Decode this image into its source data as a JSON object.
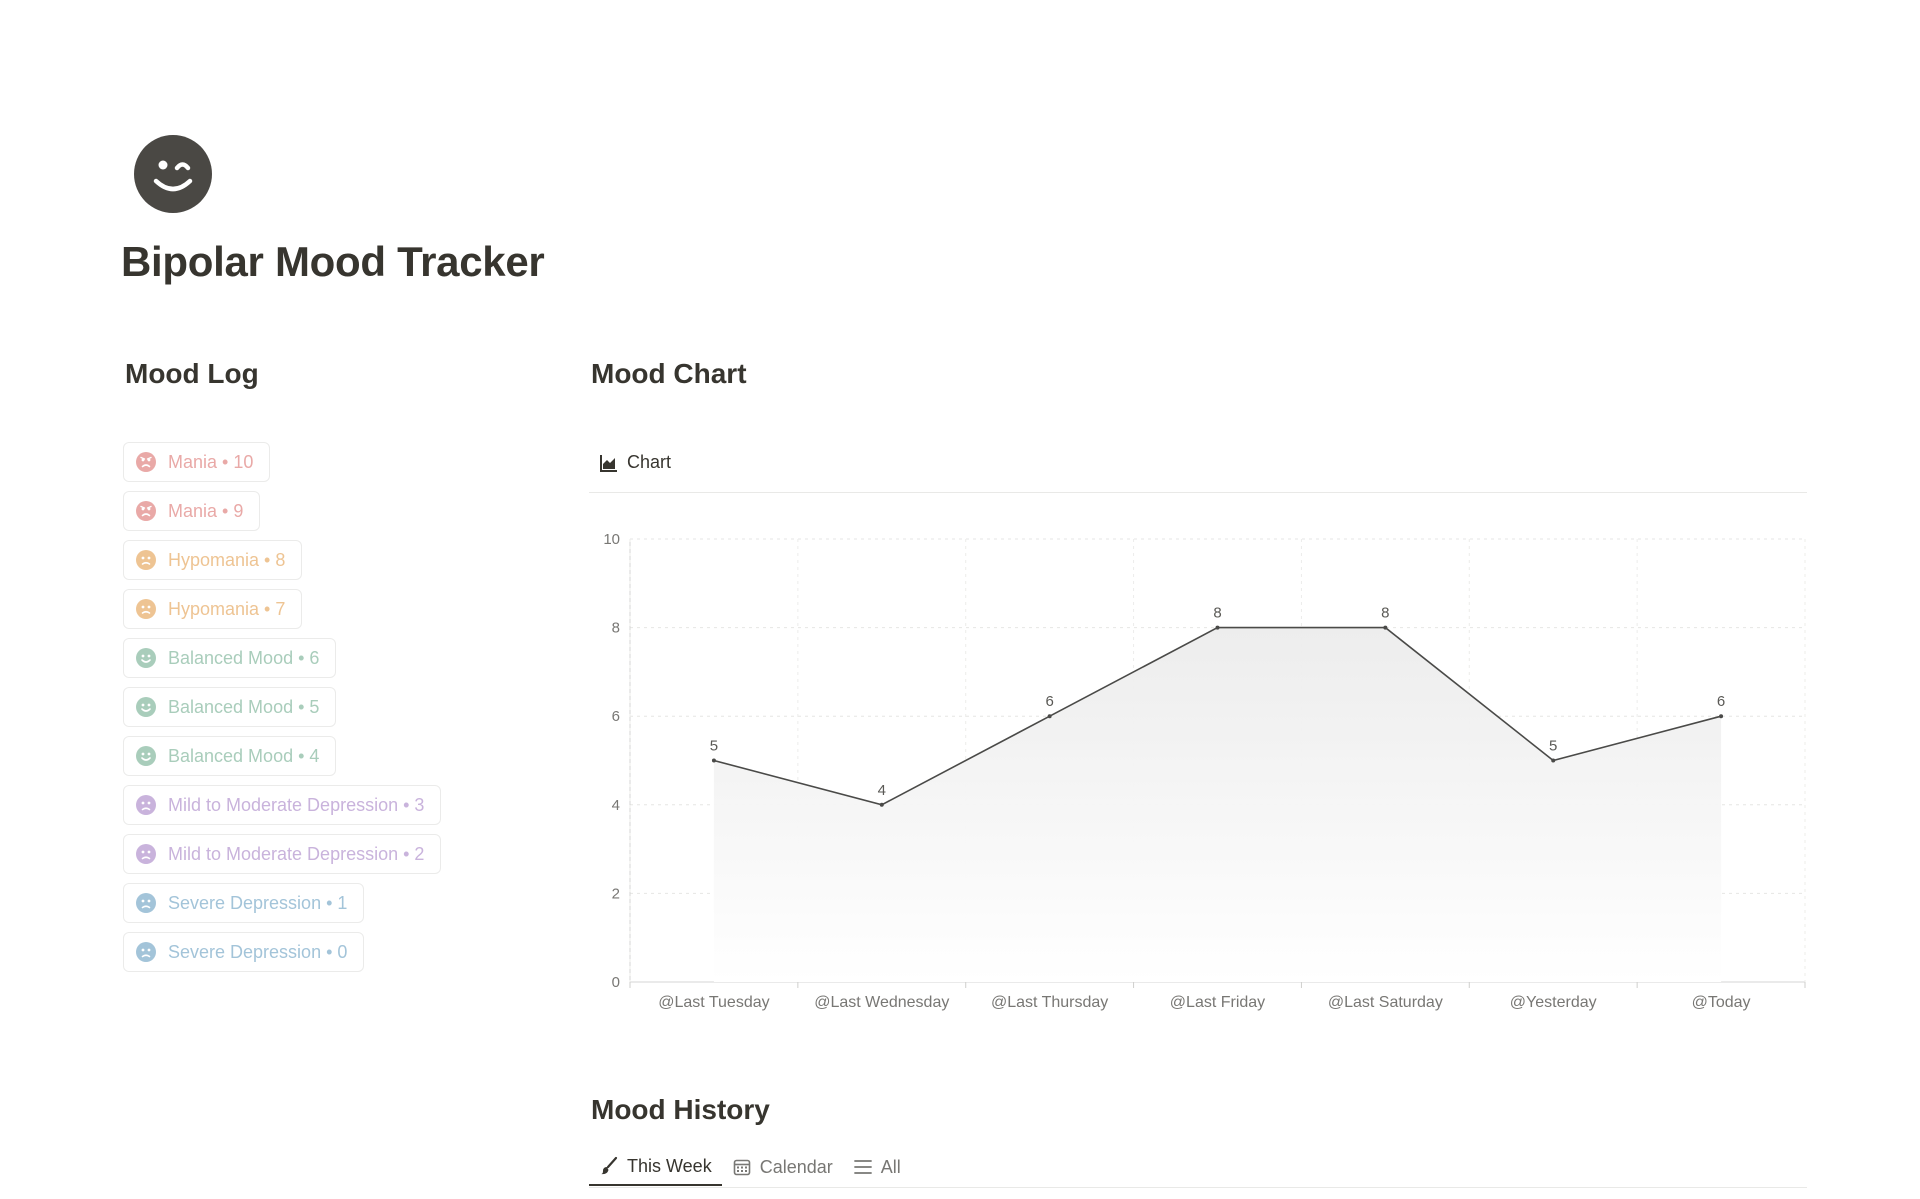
{
  "page": {
    "icon": "winking-face-icon",
    "title": "Bipolar Mood Tracker"
  },
  "mood_log": {
    "heading": "Mood Log",
    "items": [
      {
        "label": "Mania • 10",
        "icon": "angry-face-icon",
        "color": "#e9a9a7"
      },
      {
        "label": "Mania • 9",
        "icon": "angry-face-icon",
        "color": "#e9a9a7"
      },
      {
        "label": "Hypomania • 8",
        "icon": "frowning-face-icon",
        "color": "#eec493"
      },
      {
        "label": "Hypomania • 7",
        "icon": "frowning-face-icon",
        "color": "#eec493"
      },
      {
        "label": "Balanced Mood • 6",
        "icon": "smiling-face-icon",
        "color": "#a9cdbb"
      },
      {
        "label": "Balanced Mood • 5",
        "icon": "smiling-face-icon",
        "color": "#a9cdbb"
      },
      {
        "label": "Balanced Mood • 4",
        "icon": "smiling-face-icon",
        "color": "#a9cdbb"
      },
      {
        "label": "Mild to Moderate Depression • 3",
        "icon": "sad-face-icon",
        "color": "#c9b3dc"
      },
      {
        "label": "Mild to Moderate Depression • 2",
        "icon": "sad-face-icon",
        "color": "#c9b3dc"
      },
      {
        "label": "Severe Depression • 1",
        "icon": "sad-face-icon",
        "color": "#a3c4d9"
      },
      {
        "label": "Severe Depression • 0",
        "icon": "sad-face-icon",
        "color": "#a3c4d9"
      }
    ]
  },
  "mood_chart": {
    "heading": "Mood Chart",
    "tab_label": "Chart",
    "tab_icon": "area-chart-icon"
  },
  "chart_data": {
    "type": "area",
    "categories": [
      "@Last Tuesday",
      "@Last Wednesday",
      "@Last Thursday",
      "@Last Friday",
      "@Last Saturday",
      "@Yesterday",
      "@Today"
    ],
    "series": [
      {
        "values": [
          5,
          4,
          6,
          8,
          8,
          5,
          6
        ]
      }
    ],
    "ylim": [
      0,
      10
    ],
    "yticks": [
      0,
      2,
      4,
      6,
      8,
      10
    ],
    "grid": true,
    "data_labels": true,
    "line_color": "#4a4a48",
    "title": "",
    "xlabel": "",
    "ylabel": ""
  },
  "mood_history": {
    "heading": "Mood History",
    "tabs": [
      {
        "label": "This Week",
        "icon": "paintbrush-icon",
        "active": true
      },
      {
        "label": "Calendar",
        "icon": "calendar-icon",
        "active": false
      },
      {
        "label": "All",
        "icon": "list-icon",
        "active": false
      }
    ]
  }
}
